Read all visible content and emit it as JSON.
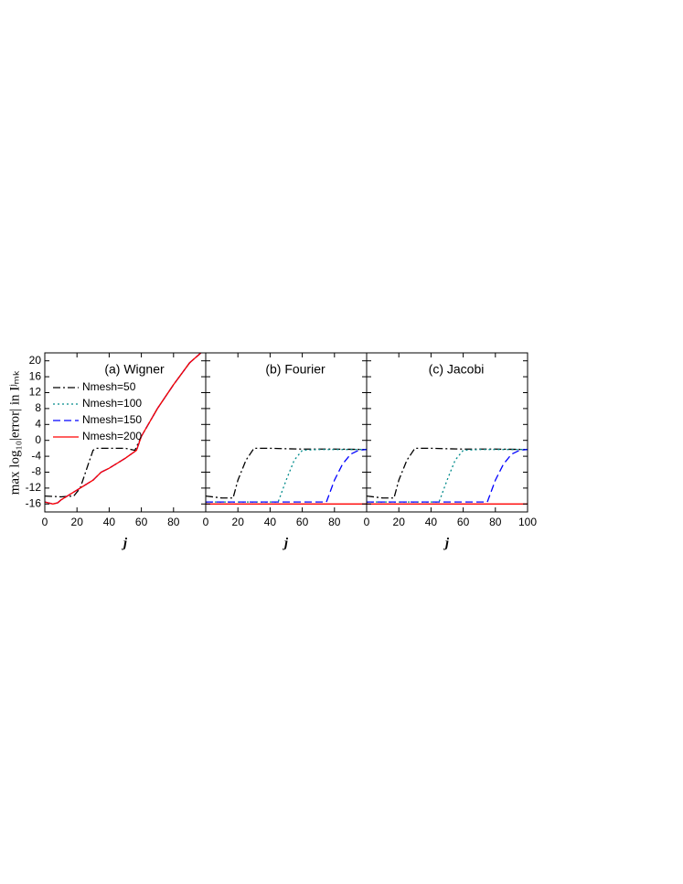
{
  "chart_data": [
    {
      "type": "line",
      "title": "(a) Wigner",
      "x_label": "j",
      "y_label": "max log₁₀|error| in Iʲₘₖ",
      "xlim": [
        0,
        100
      ],
      "xticks": [
        0,
        20,
        40,
        60,
        80
      ],
      "ylim": [
        -18,
        22
      ],
      "yticks": [
        -16,
        -12,
        -8,
        -4,
        0,
        4,
        8,
        12,
        16,
        20
      ],
      "ytick_labels": true,
      "series": [
        {
          "name": "Nmesh=50",
          "color": "#000000",
          "linestyle": "dash-dot",
          "x": [
            0,
            10,
            18,
            22,
            27,
            30,
            32,
            40,
            50,
            56,
            60,
            70,
            80,
            90,
            97
          ],
          "values": [
            -14,
            -14.2,
            -14,
            -12,
            -6,
            -2.5,
            -2,
            -2,
            -2,
            -2.5,
            1,
            8,
            14,
            19.5,
            22
          ]
        },
        {
          "name": "Nmesh=100",
          "color": "#008b8b",
          "linestyle": "dotted",
          "x": [
            0,
            5,
            8,
            10,
            20,
            30,
            35,
            40,
            50,
            57,
            60,
            70,
            80,
            90,
            97
          ],
          "values": [
            -15.5,
            -16,
            -15.7,
            -15,
            -12.5,
            -10,
            -8,
            -7,
            -4.5,
            -2.5,
            1,
            8,
            14,
            19.5,
            22
          ]
        },
        {
          "name": "Nmesh=150",
          "color": "#0000ff",
          "linestyle": "dashed",
          "x": [
            0,
            5,
            8,
            10,
            20,
            30,
            35,
            40,
            50,
            57,
            60,
            70,
            80,
            90,
            97
          ],
          "values": [
            -15.5,
            -16,
            -15.7,
            -15,
            -12.5,
            -10,
            -8,
            -7,
            -4.5,
            -2.5,
            1,
            8,
            14,
            19.5,
            22
          ]
        },
        {
          "name": "Nmesh=200",
          "color": "#ff0000",
          "linestyle": "solid",
          "x": [
            0,
            5,
            8,
            10,
            20,
            30,
            35,
            40,
            50,
            57,
            60,
            70,
            80,
            90,
            97
          ],
          "values": [
            -15.5,
            -16,
            -15.7,
            -15,
            -12.5,
            -10,
            -8,
            -7,
            -4.5,
            -2.5,
            1,
            8,
            14,
            19.5,
            22
          ]
        }
      ]
    },
    {
      "type": "line",
      "title": "(b) Fourier",
      "x_label": "j",
      "xlim": [
        0,
        100
      ],
      "xticks": [
        0,
        20,
        40,
        60,
        80
      ],
      "ylim": [
        -18,
        22
      ],
      "yticks": [
        -16,
        -12,
        -8,
        -4,
        0,
        4,
        8,
        12,
        16,
        20
      ],
      "ytick_labels": false,
      "series": [
        {
          "color": "#000000",
          "linestyle": "dash-dot",
          "x": [
            0,
            10,
            17,
            20,
            25,
            30,
            40,
            60,
            80,
            100
          ],
          "values": [
            -14,
            -14.5,
            -14.5,
            -10,
            -5,
            -2,
            -2,
            -2.2,
            -2.2,
            -2.3
          ]
        },
        {
          "color": "#008b8b",
          "linestyle": "dotted",
          "x": [
            0,
            45,
            50,
            55,
            60,
            70,
            100
          ],
          "values": [
            -15.5,
            -15.5,
            -10,
            -5,
            -2.5,
            -2.3,
            -2.3
          ]
        },
        {
          "color": "#0000ff",
          "linestyle": "dashed",
          "x": [
            0,
            75,
            80,
            85,
            90,
            95,
            100
          ],
          "values": [
            -15.5,
            -15.5,
            -10,
            -6,
            -3.5,
            -2.5,
            -2.3
          ]
        },
        {
          "color": "#ff0000",
          "linestyle": "solid",
          "x": [
            0,
            50,
            100
          ],
          "values": [
            -16,
            -16,
            -16
          ]
        }
      ]
    },
    {
      "type": "line",
      "title": "(c) Jacobi",
      "x_label": "j",
      "xlim": [
        0,
        100
      ],
      "xticks": [
        0,
        20,
        40,
        60,
        80,
        100
      ],
      "ylim": [
        -18,
        22
      ],
      "yticks": [
        -16,
        -12,
        -8,
        -4,
        0,
        4,
        8,
        12,
        16,
        20
      ],
      "ytick_labels": false,
      "series": [
        {
          "color": "#000000",
          "linestyle": "dash-dot",
          "x": [
            0,
            10,
            17,
            20,
            25,
            30,
            40,
            60,
            80,
            100
          ],
          "values": [
            -14,
            -14.5,
            -14.5,
            -10,
            -5,
            -2,
            -2,
            -2.2,
            -2.2,
            -2.3
          ]
        },
        {
          "color": "#008b8b",
          "linestyle": "dotted",
          "x": [
            0,
            45,
            50,
            55,
            60,
            70,
            100
          ],
          "values": [
            -15.5,
            -15.5,
            -10,
            -5,
            -2.5,
            -2.3,
            -2.3
          ]
        },
        {
          "color": "#0000ff",
          "linestyle": "dashed",
          "x": [
            0,
            75,
            80,
            85,
            90,
            95,
            100
          ],
          "values": [
            -15.5,
            -15.5,
            -10,
            -6,
            -3.5,
            -2.5,
            -2.3
          ]
        },
        {
          "color": "#ff0000",
          "linestyle": "solid",
          "x": [
            0,
            50,
            100
          ],
          "values": [
            -16,
            -16,
            -16
          ]
        }
      ]
    }
  ]
}
